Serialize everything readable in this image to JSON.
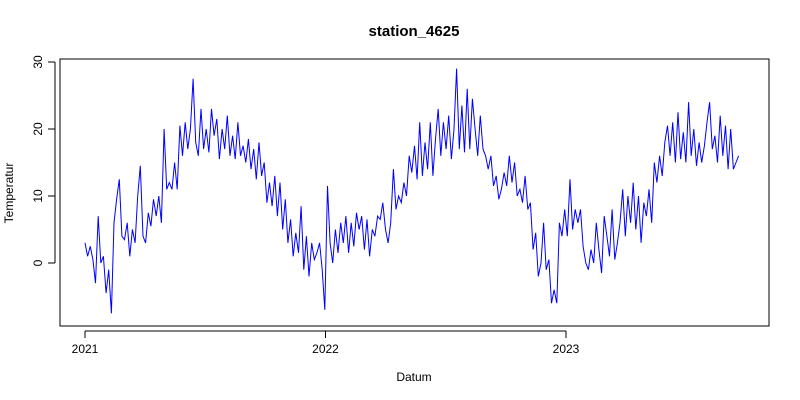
{
  "chart_data": {
    "type": "line",
    "title": "station_4625",
    "xlabel": "Datum",
    "ylabel": "Temperatur",
    "x_ticks": [
      "2021",
      "2022",
      "2023"
    ],
    "y_ticks": [
      0,
      10,
      20,
      30
    ],
    "xlim": [
      "2021-01-01",
      "2023-10-01"
    ],
    "ylim": [
      -9,
      30
    ],
    "grid": false,
    "legend": "none",
    "series": [
      {
        "color": "#0000ff",
        "points": [
          [
            "2021-01-01",
            3.0
          ],
          [
            "2021-01-05",
            1.0
          ],
          [
            "2021-01-09",
            2.5
          ],
          [
            "2021-01-13",
            0.5
          ],
          [
            "2021-01-17",
            -3.0
          ],
          [
            "2021-01-21",
            7.0
          ],
          [
            "2021-01-25",
            0.0
          ],
          [
            "2021-01-29",
            1.0
          ],
          [
            "2021-02-02",
            -4.5
          ],
          [
            "2021-02-06",
            -1.0
          ],
          [
            "2021-02-10",
            -7.5
          ],
          [
            "2021-02-14",
            6.0
          ],
          [
            "2021-02-18",
            9.5
          ],
          [
            "2021-02-22",
            12.5
          ],
          [
            "2021-02-26",
            4.0
          ],
          [
            "2021-03-02",
            3.5
          ],
          [
            "2021-03-06",
            6.0
          ],
          [
            "2021-03-10",
            1.0
          ],
          [
            "2021-03-14",
            5.0
          ],
          [
            "2021-03-18",
            3.0
          ],
          [
            "2021-03-22",
            10.0
          ],
          [
            "2021-03-26",
            14.5
          ],
          [
            "2021-03-30",
            4.0
          ],
          [
            "2021-04-03",
            3.0
          ],
          [
            "2021-04-07",
            7.5
          ],
          [
            "2021-04-11",
            5.5
          ],
          [
            "2021-04-15",
            9.5
          ],
          [
            "2021-04-19",
            7.0
          ],
          [
            "2021-04-23",
            10.0
          ],
          [
            "2021-04-27",
            6.0
          ],
          [
            "2021-05-01",
            20.0
          ],
          [
            "2021-05-05",
            11.0
          ],
          [
            "2021-05-09",
            12.0
          ],
          [
            "2021-05-13",
            11.0
          ],
          [
            "2021-05-17",
            15.0
          ],
          [
            "2021-05-21",
            11.0
          ],
          [
            "2021-05-25",
            20.5
          ],
          [
            "2021-05-29",
            16.0
          ],
          [
            "2021-06-02",
            21.0
          ],
          [
            "2021-06-06",
            17.0
          ],
          [
            "2021-06-10",
            20.0
          ],
          [
            "2021-06-14",
            27.5
          ],
          [
            "2021-06-18",
            18.0
          ],
          [
            "2021-06-22",
            16.0
          ],
          [
            "2021-06-26",
            23.0
          ],
          [
            "2021-06-30",
            17.0
          ],
          [
            "2021-07-04",
            20.0
          ],
          [
            "2021-07-08",
            16.5
          ],
          [
            "2021-07-12",
            23.0
          ],
          [
            "2021-07-16",
            19.0
          ],
          [
            "2021-07-20",
            21.5
          ],
          [
            "2021-07-24",
            15.5
          ],
          [
            "2021-07-28",
            20.0
          ],
          [
            "2021-08-01",
            17.0
          ],
          [
            "2021-08-05",
            22.0
          ],
          [
            "2021-08-09",
            16.0
          ],
          [
            "2021-08-13",
            19.0
          ],
          [
            "2021-08-17",
            15.5
          ],
          [
            "2021-08-21",
            21.0
          ],
          [
            "2021-08-25",
            16.0
          ],
          [
            "2021-08-29",
            17.5
          ],
          [
            "2021-09-02",
            15.0
          ],
          [
            "2021-09-06",
            18.5
          ],
          [
            "2021-09-10",
            14.0
          ],
          [
            "2021-09-14",
            17.0
          ],
          [
            "2021-09-18",
            12.5
          ],
          [
            "2021-09-22",
            18.0
          ],
          [
            "2021-09-26",
            13.0
          ],
          [
            "2021-09-30",
            15.0
          ],
          [
            "2021-10-04",
            9.0
          ],
          [
            "2021-10-08",
            12.0
          ],
          [
            "2021-10-12",
            8.5
          ],
          [
            "2021-10-16",
            13.0
          ],
          [
            "2021-10-20",
            7.0
          ],
          [
            "2021-10-24",
            12.0
          ],
          [
            "2021-10-28",
            5.0
          ],
          [
            "2021-11-01",
            9.5
          ],
          [
            "2021-11-05",
            3.0
          ],
          [
            "2021-11-09",
            6.5
          ],
          [
            "2021-11-13",
            1.0
          ],
          [
            "2021-11-17",
            4.5
          ],
          [
            "2021-11-21",
            1.5
          ],
          [
            "2021-11-25",
            8.5
          ],
          [
            "2021-11-29",
            -1.0
          ],
          [
            "2021-12-03",
            4.0
          ],
          [
            "2021-12-07",
            -2.0
          ],
          [
            "2021-12-11",
            3.0
          ],
          [
            "2021-12-15",
            0.5
          ],
          [
            "2021-12-19",
            1.5
          ],
          [
            "2021-12-23",
            3.0
          ],
          [
            "2021-12-27",
            -1.0
          ],
          [
            "2021-12-31",
            -7.0
          ],
          [
            "2022-01-04",
            11.5
          ],
          [
            "2022-01-08",
            3.0
          ],
          [
            "2022-01-12",
            0.0
          ],
          [
            "2022-01-16",
            5.0
          ],
          [
            "2022-01-20",
            1.5
          ],
          [
            "2022-01-24",
            6.0
          ],
          [
            "2022-01-28",
            3.0
          ],
          [
            "2022-02-01",
            7.0
          ],
          [
            "2022-02-05",
            1.5
          ],
          [
            "2022-02-09",
            6.0
          ],
          [
            "2022-02-13",
            2.5
          ],
          [
            "2022-02-17",
            7.5
          ],
          [
            "2022-02-21",
            5.0
          ],
          [
            "2022-02-25",
            7.0
          ],
          [
            "2022-03-01",
            2.0
          ],
          [
            "2022-03-05",
            6.5
          ],
          [
            "2022-03-09",
            1.0
          ],
          [
            "2022-03-13",
            5.0
          ],
          [
            "2022-03-17",
            4.0
          ],
          [
            "2022-03-21",
            7.0
          ],
          [
            "2022-03-25",
            6.5
          ],
          [
            "2022-03-29",
            9.0
          ],
          [
            "2022-04-02",
            5.0
          ],
          [
            "2022-04-06",
            3.0
          ],
          [
            "2022-04-10",
            6.0
          ],
          [
            "2022-04-14",
            14.0
          ],
          [
            "2022-04-18",
            8.0
          ],
          [
            "2022-04-22",
            10.0
          ],
          [
            "2022-04-26",
            9.0
          ],
          [
            "2022-04-30",
            12.0
          ],
          [
            "2022-05-04",
            10.0
          ],
          [
            "2022-05-08",
            16.0
          ],
          [
            "2022-05-12",
            13.5
          ],
          [
            "2022-05-16",
            17.5
          ],
          [
            "2022-05-20",
            12.5
          ],
          [
            "2022-05-24",
            21.0
          ],
          [
            "2022-05-28",
            13.0
          ],
          [
            "2022-06-01",
            18.0
          ],
          [
            "2022-06-05",
            14.0
          ],
          [
            "2022-06-09",
            21.0
          ],
          [
            "2022-06-13",
            13.0
          ],
          [
            "2022-06-17",
            18.5
          ],
          [
            "2022-06-21",
            23.0
          ],
          [
            "2022-06-25",
            16.0
          ],
          [
            "2022-06-29",
            21.0
          ],
          [
            "2022-07-03",
            17.0
          ],
          [
            "2022-07-07",
            22.0
          ],
          [
            "2022-07-11",
            15.5
          ],
          [
            "2022-07-15",
            20.0
          ],
          [
            "2022-07-19",
            29.0
          ],
          [
            "2022-07-23",
            17.0
          ],
          [
            "2022-07-27",
            23.5
          ],
          [
            "2022-07-31",
            16.5
          ],
          [
            "2022-08-04",
            26.0
          ],
          [
            "2022-08-08",
            17.0
          ],
          [
            "2022-08-12",
            24.5
          ],
          [
            "2022-08-16",
            20.0
          ],
          [
            "2022-08-20",
            16.0
          ],
          [
            "2022-08-24",
            22.0
          ],
          [
            "2022-08-28",
            17.0
          ],
          [
            "2022-09-01",
            16.0
          ],
          [
            "2022-09-05",
            14.0
          ],
          [
            "2022-09-09",
            16.0
          ],
          [
            "2022-09-13",
            11.5
          ],
          [
            "2022-09-17",
            13.0
          ],
          [
            "2022-09-21",
            9.5
          ],
          [
            "2022-09-25",
            11.0
          ],
          [
            "2022-09-29",
            13.5
          ],
          [
            "2022-10-03",
            11.5
          ],
          [
            "2022-10-07",
            16.0
          ],
          [
            "2022-10-11",
            12.0
          ],
          [
            "2022-10-15",
            15.0
          ],
          [
            "2022-10-19",
            10.0
          ],
          [
            "2022-10-23",
            11.0
          ],
          [
            "2022-10-27",
            9.0
          ],
          [
            "2022-10-31",
            13.0
          ],
          [
            "2022-11-04",
            8.0
          ],
          [
            "2022-11-08",
            9.0
          ],
          [
            "2022-11-12",
            2.0
          ],
          [
            "2022-11-16",
            4.5
          ],
          [
            "2022-11-20",
            -2.0
          ],
          [
            "2022-11-24",
            0.0
          ],
          [
            "2022-11-28",
            6.0
          ],
          [
            "2022-12-02",
            -1.0
          ],
          [
            "2022-12-06",
            0.5
          ],
          [
            "2022-12-10",
            -6.0
          ],
          [
            "2022-12-14",
            -4.0
          ],
          [
            "2022-12-18",
            -6.0
          ],
          [
            "2022-12-22",
            6.0
          ],
          [
            "2022-12-26",
            4.0
          ],
          [
            "2022-12-30",
            8.0
          ],
          [
            "2023-01-03",
            4.0
          ],
          [
            "2023-01-07",
            12.5
          ],
          [
            "2023-01-11",
            5.0
          ],
          [
            "2023-01-15",
            8.0
          ],
          [
            "2023-01-19",
            6.0
          ],
          [
            "2023-01-23",
            8.0
          ],
          [
            "2023-01-27",
            2.5
          ],
          [
            "2023-01-31",
            0.0
          ],
          [
            "2023-02-04",
            -1.0
          ],
          [
            "2023-02-08",
            2.0
          ],
          [
            "2023-02-12",
            0.0
          ],
          [
            "2023-02-16",
            6.0
          ],
          [
            "2023-02-20",
            2.0
          ],
          [
            "2023-02-24",
            -1.5
          ],
          [
            "2023-02-28",
            7.0
          ],
          [
            "2023-03-04",
            4.0
          ],
          [
            "2023-03-08",
            1.0
          ],
          [
            "2023-03-12",
            8.0
          ],
          [
            "2023-03-16",
            0.5
          ],
          [
            "2023-03-20",
            3.0
          ],
          [
            "2023-03-24",
            6.0
          ],
          [
            "2023-03-28",
            11.0
          ],
          [
            "2023-04-01",
            4.0
          ],
          [
            "2023-04-05",
            10.0
          ],
          [
            "2023-04-09",
            6.0
          ],
          [
            "2023-04-13",
            12.0
          ],
          [
            "2023-04-17",
            5.0
          ],
          [
            "2023-04-21",
            10.0
          ],
          [
            "2023-04-25",
            3.0
          ],
          [
            "2023-04-29",
            9.0
          ],
          [
            "2023-05-03",
            7.0
          ],
          [
            "2023-05-07",
            11.0
          ],
          [
            "2023-05-11",
            6.0
          ],
          [
            "2023-05-15",
            15.0
          ],
          [
            "2023-05-19",
            12.0
          ],
          [
            "2023-05-23",
            16.0
          ],
          [
            "2023-05-27",
            13.0
          ],
          [
            "2023-05-31",
            18.0
          ],
          [
            "2023-06-04",
            20.5
          ],
          [
            "2023-06-08",
            16.0
          ],
          [
            "2023-06-12",
            21.0
          ],
          [
            "2023-06-16",
            15.0
          ],
          [
            "2023-06-20",
            22.5
          ],
          [
            "2023-06-24",
            15.5
          ],
          [
            "2023-06-28",
            19.5
          ],
          [
            "2023-07-02",
            15.0
          ],
          [
            "2023-07-06",
            24.0
          ],
          [
            "2023-07-10",
            16.0
          ],
          [
            "2023-07-14",
            20.0
          ],
          [
            "2023-07-18",
            14.5
          ],
          [
            "2023-07-22",
            18.0
          ],
          [
            "2023-07-26",
            15.0
          ],
          [
            "2023-07-30",
            17.5
          ],
          [
            "2023-08-03",
            21.0
          ],
          [
            "2023-08-07",
            24.0
          ],
          [
            "2023-08-11",
            17.0
          ],
          [
            "2023-08-15",
            19.0
          ],
          [
            "2023-08-19",
            15.0
          ],
          [
            "2023-08-23",
            22.0
          ],
          [
            "2023-08-27",
            16.0
          ],
          [
            "2023-08-31",
            20.5
          ],
          [
            "2023-09-04",
            14.0
          ],
          [
            "2023-09-08",
            20.0
          ],
          [
            "2023-09-12",
            14.0
          ],
          [
            "2023-09-16",
            15.0
          ],
          [
            "2023-09-20",
            16.0
          ]
        ]
      }
    ]
  }
}
